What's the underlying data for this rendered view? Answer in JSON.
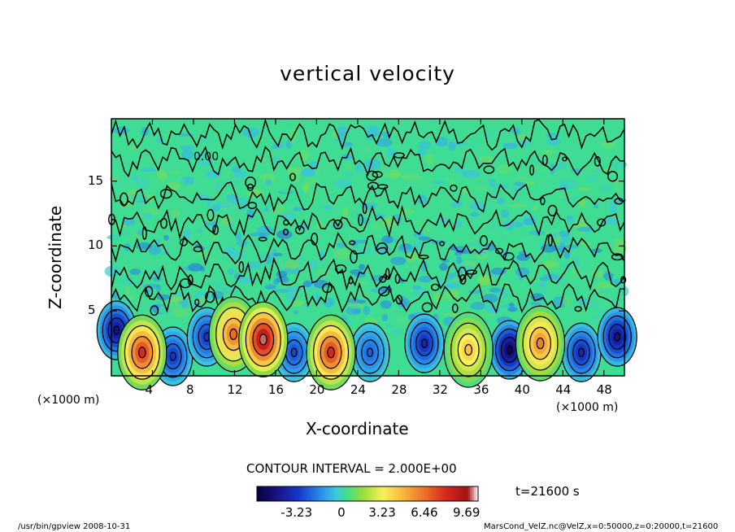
{
  "chart_data": {
    "type": "heatmap",
    "title": "vertical velocity",
    "xlabel": "X-coordinate",
    "ylabel": "Z-coordinate",
    "x_unit_left": "(×1000 m)",
    "x_unit_right": "(×1000 m)",
    "xlim": [
      0,
      50
    ],
    "ylim": [
      0,
      19.8
    ],
    "x_ticks": [
      "4",
      "8",
      "12",
      "16",
      "20",
      "24",
      "28",
      "32",
      "36",
      "40",
      "44",
      "48"
    ],
    "x_tick_values": [
      4,
      8,
      12,
      16,
      20,
      24,
      28,
      32,
      36,
      40,
      44,
      48
    ],
    "y_ticks": [
      "5",
      "10",
      "15"
    ],
    "y_tick_values": [
      5,
      10,
      15
    ],
    "contour_interval_text": "CONTOUR INTERVAL = 2.000E+00",
    "contour_label": "0.00",
    "colorbar": {
      "ticks": [
        "-3.23",
        "0",
        "3.23",
        "6.46",
        "9.69"
      ],
      "tick_values": [
        -3.23,
        0,
        3.23,
        6.46,
        9.69
      ],
      "range": [
        -6.46,
        10.5
      ]
    },
    "time_label": "t=21600 s",
    "updrafts": [
      {
        "x": 3.0,
        "z": 1.8,
        "peak": 8.0
      },
      {
        "x": 11.9,
        "z": 3.2,
        "peak": 6.5
      },
      {
        "x": 14.8,
        "z": 2.8,
        "peak": 10.0
      },
      {
        "x": 21.4,
        "z": 1.8,
        "peak": 8.0
      },
      {
        "x": 34.8,
        "z": 2.0,
        "peak": 4.5
      },
      {
        "x": 41.8,
        "z": 2.5,
        "peak": 6.0
      }
    ],
    "downdrafts": [
      {
        "x": 0.5,
        "z": 3.5,
        "peak": -5.0
      },
      {
        "x": 6.0,
        "z": 1.5,
        "peak": -3.5
      },
      {
        "x": 9.3,
        "z": 3.0,
        "peak": -3.5
      },
      {
        "x": 17.8,
        "z": 1.8,
        "peak": -3.0
      },
      {
        "x": 25.2,
        "z": 1.8,
        "peak": -2.5
      },
      {
        "x": 30.5,
        "z": 2.5,
        "peak": -4.0
      },
      {
        "x": 38.8,
        "z": 2.0,
        "peak": -6.0
      },
      {
        "x": 45.8,
        "z": 1.8,
        "peak": -4.0
      },
      {
        "x": 49.3,
        "z": 3.0,
        "peak": -5.0
      }
    ]
  },
  "footer": {
    "left": "/usr/bin/gpview   2008-10-31",
    "right": "MarsCond_VelZ.nc@VelZ,x=0:50000,z=0:20000,t=21600"
  }
}
